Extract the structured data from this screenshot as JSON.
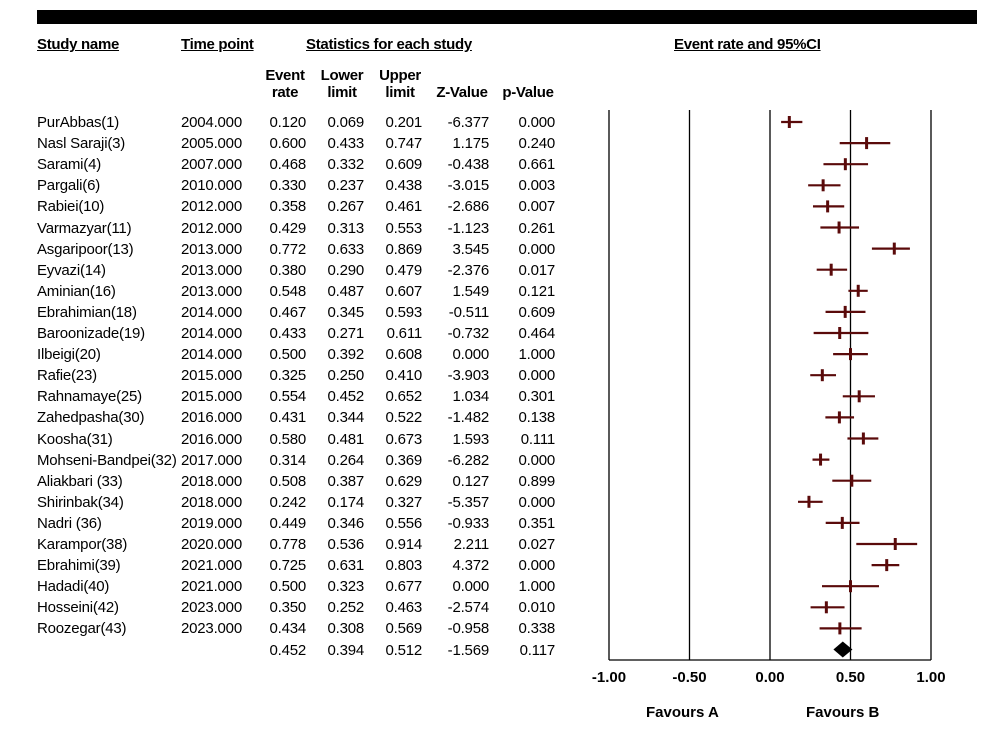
{
  "headers": {
    "study_name": "Study name",
    "time_point": "Time point",
    "stats": "Statistics for each study",
    "plot": "Event rate and 95%CI",
    "event_rate": [
      "Event",
      "rate"
    ],
    "lower_limit": [
      "Lower",
      "limit"
    ],
    "upper_limit": [
      "Upper",
      "limit"
    ],
    "z_value": "Z-Value",
    "p_value": "p-Value"
  },
  "favours": {
    "left": "Favours A",
    "right": "Favours B"
  },
  "chart_data": {
    "type": "forest",
    "title": "Event rate and 95%CI",
    "xlim": [
      -1.0,
      1.0
    ],
    "xticks": [
      "-1.00",
      "-0.50",
      "0.00",
      "0.50",
      "1.00"
    ],
    "xtick_values": [
      -1.0,
      -0.5,
      0.0,
      0.5,
      1.0
    ],
    "marker_color": "#5a0a0a",
    "grid": false,
    "studies": [
      {
        "name": "PurAbbas(1)",
        "time": "2004.000",
        "rate": "0.120",
        "lower": "0.069",
        "upper": "0.201",
        "z": "-6.377",
        "p": "0.000"
      },
      {
        "name": "Nasl Saraji(3)",
        "time": "2005.000",
        "rate": "0.600",
        "lower": "0.433",
        "upper": "0.747",
        "z": "1.175",
        "p": "0.240"
      },
      {
        "name": "Sarami(4)",
        "time": "2007.000",
        "rate": "0.468",
        "lower": "0.332",
        "upper": "0.609",
        "z": "-0.438",
        "p": "0.661"
      },
      {
        "name": "Pargali(6)",
        "time": "2010.000",
        "rate": "0.330",
        "lower": "0.237",
        "upper": "0.438",
        "z": "-3.015",
        "p": "0.003"
      },
      {
        "name": "Rabiei(10)",
        "time": "2012.000",
        "rate": "0.358",
        "lower": "0.267",
        "upper": "0.461",
        "z": "-2.686",
        "p": "0.007"
      },
      {
        "name": "Varmazyar(11)",
        "time": "2012.000",
        "rate": "0.429",
        "lower": "0.313",
        "upper": "0.553",
        "z": "-1.123",
        "p": "0.261"
      },
      {
        "name": "Asgaripoor(13)",
        "time": "2013.000",
        "rate": "0.772",
        "lower": "0.633",
        "upper": "0.869",
        "z": "3.545",
        "p": "0.000"
      },
      {
        "name": "Eyvazi(14)",
        "time": "2013.000",
        "rate": "0.380",
        "lower": "0.290",
        "upper": "0.479",
        "z": "-2.376",
        "p": "0.017"
      },
      {
        "name": "Aminian(16)",
        "time": "2013.000",
        "rate": "0.548",
        "lower": "0.487",
        "upper": "0.607",
        "z": "1.549",
        "p": "0.121"
      },
      {
        "name": "Ebrahimian(18)",
        "time": "2014.000",
        "rate": "0.467",
        "lower": "0.345",
        "upper": "0.593",
        "z": "-0.511",
        "p": "0.609"
      },
      {
        "name": "Baroonizade(19)",
        "time": "2014.000",
        "rate": "0.433",
        "lower": "0.271",
        "upper": "0.611",
        "z": "-0.732",
        "p": "0.464"
      },
      {
        "name": "Ilbeigi(20)",
        "time": "2014.000",
        "rate": "0.500",
        "lower": "0.392",
        "upper": "0.608",
        "z": "0.000",
        "p": "1.000"
      },
      {
        "name": "Rafie(23)",
        "time": "2015.000",
        "rate": "0.325",
        "lower": "0.250",
        "upper": "0.410",
        "z": "-3.903",
        "p": "0.000"
      },
      {
        "name": "Rahnamaye(25)",
        "time": "2015.000",
        "rate": "0.554",
        "lower": "0.452",
        "upper": "0.652",
        "z": "1.034",
        "p": "0.301"
      },
      {
        "name": "Zahedpasha(30)",
        "time": "2016.000",
        "rate": "0.431",
        "lower": "0.344",
        "upper": "0.522",
        "z": "-1.482",
        "p": "0.138"
      },
      {
        "name": "Koosha(31)",
        "time": "2016.000",
        "rate": "0.580",
        "lower": "0.481",
        "upper": "0.673",
        "z": "1.593",
        "p": "0.111"
      },
      {
        "name": "Mohseni-Bandpei(32)",
        "time": "2017.000",
        "rate": "0.314",
        "lower": "0.264",
        "upper": "0.369",
        "z": "-6.282",
        "p": "0.000"
      },
      {
        "name": "Aliakbari (33)",
        "time": "2018.000",
        "rate": "0.508",
        "lower": "0.387",
        "upper": "0.629",
        "z": "0.127",
        "p": "0.899"
      },
      {
        "name": "Shirinbak(34)",
        "time": "2018.000",
        "rate": "0.242",
        "lower": "0.174",
        "upper": "0.327",
        "z": "-5.357",
        "p": "0.000"
      },
      {
        "name": "Nadri (36)",
        "time": "2019.000",
        "rate": "0.449",
        "lower": "0.346",
        "upper": "0.556",
        "z": "-0.933",
        "p": "0.351"
      },
      {
        "name": "Karampor(38)",
        "time": "2020.000",
        "rate": "0.778",
        "lower": "0.536",
        "upper": "0.914",
        "z": "2.211",
        "p": "0.027"
      },
      {
        "name": "Ebrahimi(39)",
        "time": "2021.000",
        "rate": "0.725",
        "lower": "0.631",
        "upper": "0.803",
        "z": "4.372",
        "p": "0.000"
      },
      {
        "name": "Hadadi(40)",
        "time": "2021.000",
        "rate": "0.500",
        "lower": "0.323",
        "upper": "0.677",
        "z": "0.000",
        "p": "1.000"
      },
      {
        "name": "Hosseini(42)",
        "time": "2023.000",
        "rate": "0.350",
        "lower": "0.252",
        "upper": "0.463",
        "z": "-2.574",
        "p": "0.010"
      },
      {
        "name": "Roozegar(43)",
        "time": "2023.000",
        "rate": "0.434",
        "lower": "0.308",
        "upper": "0.569",
        "z": "-0.958",
        "p": "0.338"
      }
    ],
    "summary": {
      "rate": "0.452",
      "lower": "0.394",
      "upper": "0.512",
      "z": "-1.569",
      "p": "0.117"
    }
  }
}
